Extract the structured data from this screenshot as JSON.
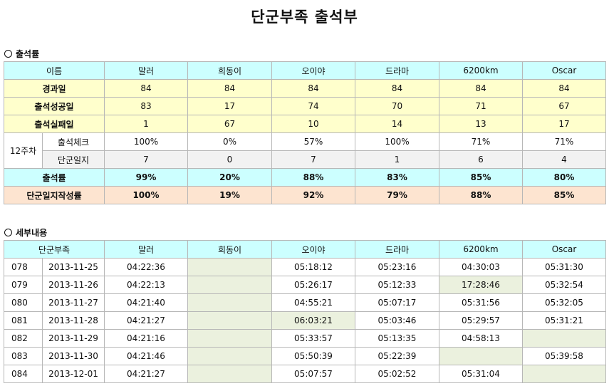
{
  "title": "단군부족 출석부",
  "section1": "출석률",
  "section2": "세부내용",
  "members": [
    "말러",
    "희동이",
    "오이야",
    "드라마",
    "6200km",
    "Oscar"
  ],
  "attendance": {
    "name_header": "이름",
    "elapsed_label": "경과일",
    "elapsed": [
      "84",
      "84",
      "84",
      "84",
      "84",
      "84"
    ],
    "success_label": "출석성공일",
    "success": [
      "83",
      "17",
      "74",
      "70",
      "71",
      "67"
    ],
    "fail_label": "출석실패일",
    "fail": [
      "1",
      "67",
      "10",
      "14",
      "13",
      "17"
    ],
    "week_label": "12주차",
    "check_label": "출석체크",
    "check": [
      "100%",
      "0%",
      "57%",
      "100%",
      "71%",
      "71%"
    ],
    "journal_week_label": "단군일지",
    "journal_week": [
      "7",
      "0",
      "7",
      "1",
      "6",
      "4"
    ],
    "rate_label": "출석률",
    "rate": [
      "99%",
      "20%",
      "88%",
      "83%",
      "85%",
      "80%"
    ],
    "journal_rate_label": "단군일지작성률",
    "journal_rate": [
      "100%",
      "19%",
      "92%",
      "79%",
      "88%",
      "85%"
    ]
  },
  "detail": {
    "header": "단군부족",
    "rows": [
      {
        "day": "078",
        "date": "2013-11-25",
        "times": [
          "04:22:36",
          "",
          "05:18:12",
          "05:23:16",
          "04:30:03",
          "05:31:30"
        ]
      },
      {
        "day": "079",
        "date": "2013-11-26",
        "times": [
          "04:22:13",
          "",
          "05:26:17",
          "05:12:33",
          "17:28:46",
          "05:32:54"
        ]
      },
      {
        "day": "080",
        "date": "2013-11-27",
        "times": [
          "04:21:40",
          "",
          "04:55:21",
          "05:07:17",
          "05:31:56",
          "05:32:05"
        ]
      },
      {
        "day": "081",
        "date": "2013-11-28",
        "times": [
          "04:21:27",
          "",
          "06:03:21",
          "05:03:46",
          "05:29:57",
          "05:31:21"
        ]
      },
      {
        "day": "082",
        "date": "2013-11-29",
        "times": [
          "04:21:16",
          "",
          "05:33:57",
          "05:13:35",
          "04:58:13",
          ""
        ]
      },
      {
        "day": "083",
        "date": "2013-11-30",
        "times": [
          "04:21:46",
          "",
          "05:50:39",
          "05:22:39",
          "",
          "05:39:58"
        ]
      },
      {
        "day": "084",
        "date": "2013-12-01",
        "times": [
          "04:21:27",
          "",
          "05:07:57",
          "05:02:52",
          "05:31:04",
          ""
        ]
      }
    ],
    "highlight": [
      [
        1,
        4
      ],
      [
        3,
        2
      ]
    ]
  }
}
